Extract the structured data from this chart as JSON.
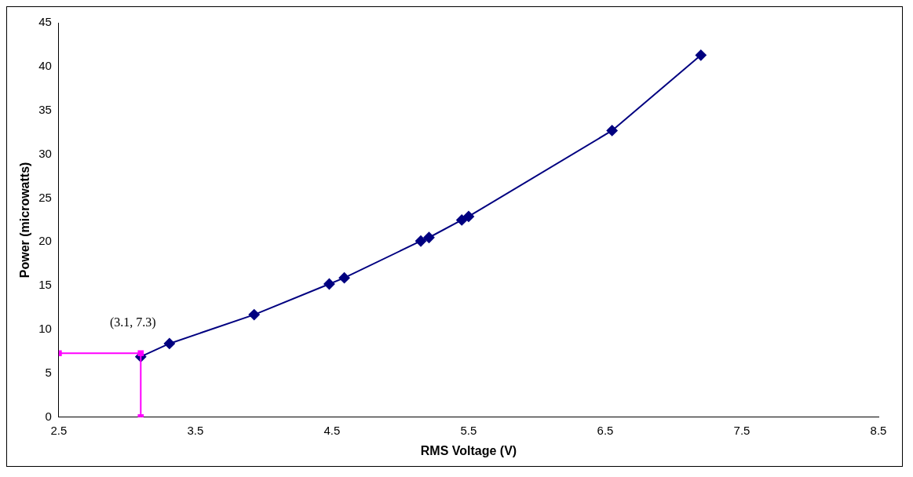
{
  "chart_data": {
    "type": "line",
    "xlabel": "RMS Voltage (V)",
    "ylabel": "Power (microwatts)",
    "xlim": [
      2.5,
      8.5
    ],
    "xticks": [
      2.5,
      3.5,
      4.5,
      5.5,
      6.5,
      7.5,
      8.5
    ],
    "ylim": [
      0,
      45
    ],
    "yticks": [
      0,
      5,
      10,
      15,
      20,
      25,
      30,
      35,
      40,
      45
    ],
    "grid": false,
    "legend": false,
    "series": [
      {
        "color": "#000080",
        "marker": "diamond",
        "x": [
          3.1,
          3.31,
          3.93,
          4.48,
          4.59,
          5.15,
          5.21,
          5.45,
          5.5,
          6.55,
          7.2
        ],
        "values": [
          6.9,
          8.4,
          11.7,
          15.2,
          15.9,
          20.1,
          20.5,
          22.5,
          22.9,
          32.7,
          41.3
        ]
      },
      {
        "color": "#ff00ff",
        "marker": "square",
        "x": [
          2.5,
          3.1,
          3.1
        ],
        "values": [
          7.3,
          7.3,
          0
        ]
      }
    ],
    "annotations": [
      {
        "text": "(3.1, 7.3)",
        "x": 3.1,
        "y": 7.3
      }
    ]
  }
}
